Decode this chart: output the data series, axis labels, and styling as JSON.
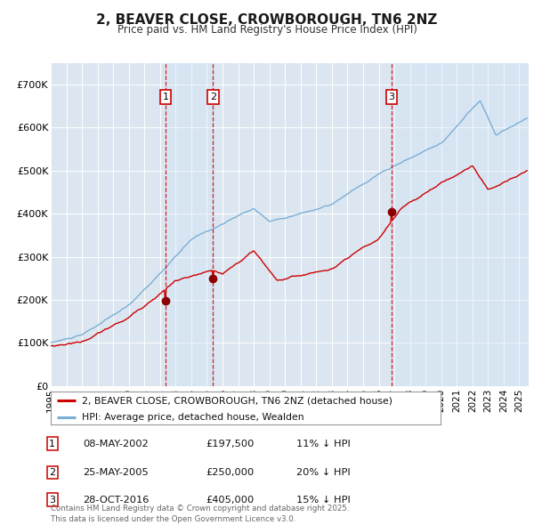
{
  "title": "2, BEAVER CLOSE, CROWBOROUGH, TN6 2NZ",
  "subtitle": "Price paid vs. HM Land Registry's House Price Index (HPI)",
  "ylim": [
    0,
    750000
  ],
  "yticks": [
    0,
    100000,
    200000,
    300000,
    400000,
    500000,
    600000,
    700000
  ],
  "ytick_labels": [
    "£0",
    "£100K",
    "£200K",
    "£300K",
    "£400K",
    "£500K",
    "£600K",
    "£700K"
  ],
  "xlim_start": 1995.0,
  "xlim_end": 2025.6,
  "bg_color": "#dce6f1",
  "grid_color": "#ffffff",
  "line_color_hpi": "#7bafd4",
  "line_color_price": "#cc0000",
  "sale_marker_color": "#8b0000",
  "vline_color": "#cc0000",
  "vspan_color": "#d0e4f7",
  "sale_dates": [
    2002.36,
    2005.39,
    2016.83
  ],
  "sale_prices": [
    197500,
    250000,
    405000
  ],
  "sale_labels": [
    "1",
    "2",
    "3"
  ],
  "sale_info": [
    {
      "label": "1",
      "date": "08-MAY-2002",
      "price": "£197,500",
      "hpi_note": "11% ↓ HPI"
    },
    {
      "label": "2",
      "date": "25-MAY-2005",
      "price": "£250,000",
      "hpi_note": "20% ↓ HPI"
    },
    {
      "label": "3",
      "date": "28-OCT-2016",
      "price": "£405,000",
      "hpi_note": "15% ↓ HPI"
    }
  ],
  "legend_line1": "2, BEAVER CLOSE, CROWBOROUGH, TN6 2NZ (detached house)",
  "legend_line2": "HPI: Average price, detached house, Wealden",
  "footer": "Contains HM Land Registry data © Crown copyright and database right 2025.\nThis data is licensed under the Open Government Licence v3.0."
}
